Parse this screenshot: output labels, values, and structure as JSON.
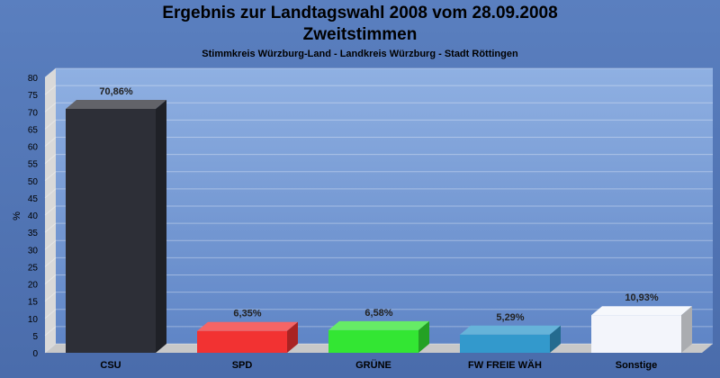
{
  "title": "Ergebnis zur Landtagswahl 2008 vom 28.09.2008",
  "subtitle": "Zweitstimmen",
  "subsubtitle": "Stimmkreis Würzburg-Land - Landkreis Würzburg - Stadt Röttingen",
  "chart_data": {
    "type": "bar",
    "title": "Ergebnis zur Landtagswahl 2008 vom 28.09.2008",
    "subtitle": "Zweitstimmen",
    "ylabel": "%",
    "ylim": [
      0,
      80
    ],
    "yticks": [
      0,
      5,
      10,
      15,
      20,
      25,
      30,
      35,
      40,
      45,
      50,
      55,
      60,
      65,
      70,
      75,
      80
    ],
    "grid": true,
    "categories": [
      "CSU",
      "SPD",
      "GRÜNE",
      "FW FREIE WÄH",
      "Sonstige"
    ],
    "values": [
      70.86,
      6.35,
      6.58,
      5.29,
      10.93
    ],
    "value_labels": [
      "70,86%",
      "6,35%",
      "6,58%",
      "5,29%",
      "10,93%"
    ],
    "colors": [
      "#2d2f37",
      "#f23232",
      "#33e633",
      "#3399cc",
      "#f3f5fb"
    ]
  }
}
